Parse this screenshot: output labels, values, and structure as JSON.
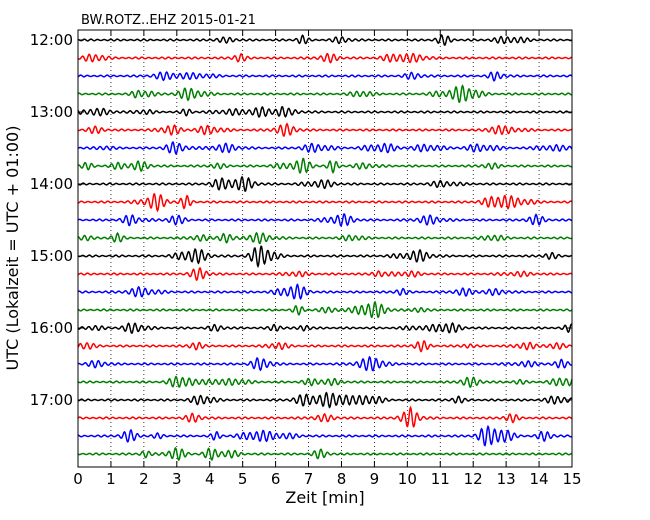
{
  "chart_data": {
    "type": "line",
    "title": "BW.ROTZ..EHZ 2015-01-21",
    "xlabel": "Zeit  [min]",
    "ylabel": "UTC (Lokalzeit = UTC + 01:00)",
    "xlim": [
      0,
      15
    ],
    "x_ticks": [
      "0",
      "1",
      "2",
      "3",
      "4",
      "5",
      "6",
      "7",
      "8",
      "9",
      "10",
      "11",
      "12",
      "13",
      "14",
      "15"
    ],
    "y_tick_labels": [
      "12:00",
      "13:00",
      "14:00",
      "15:00",
      "16:00",
      "17:00"
    ],
    "trace_interval_min": 15,
    "trace_count": 24,
    "trace_colors": [
      "#000000",
      "#ff0000",
      "#0000ff",
      "#008000"
    ],
    "grid": "vertical dotted"
  }
}
